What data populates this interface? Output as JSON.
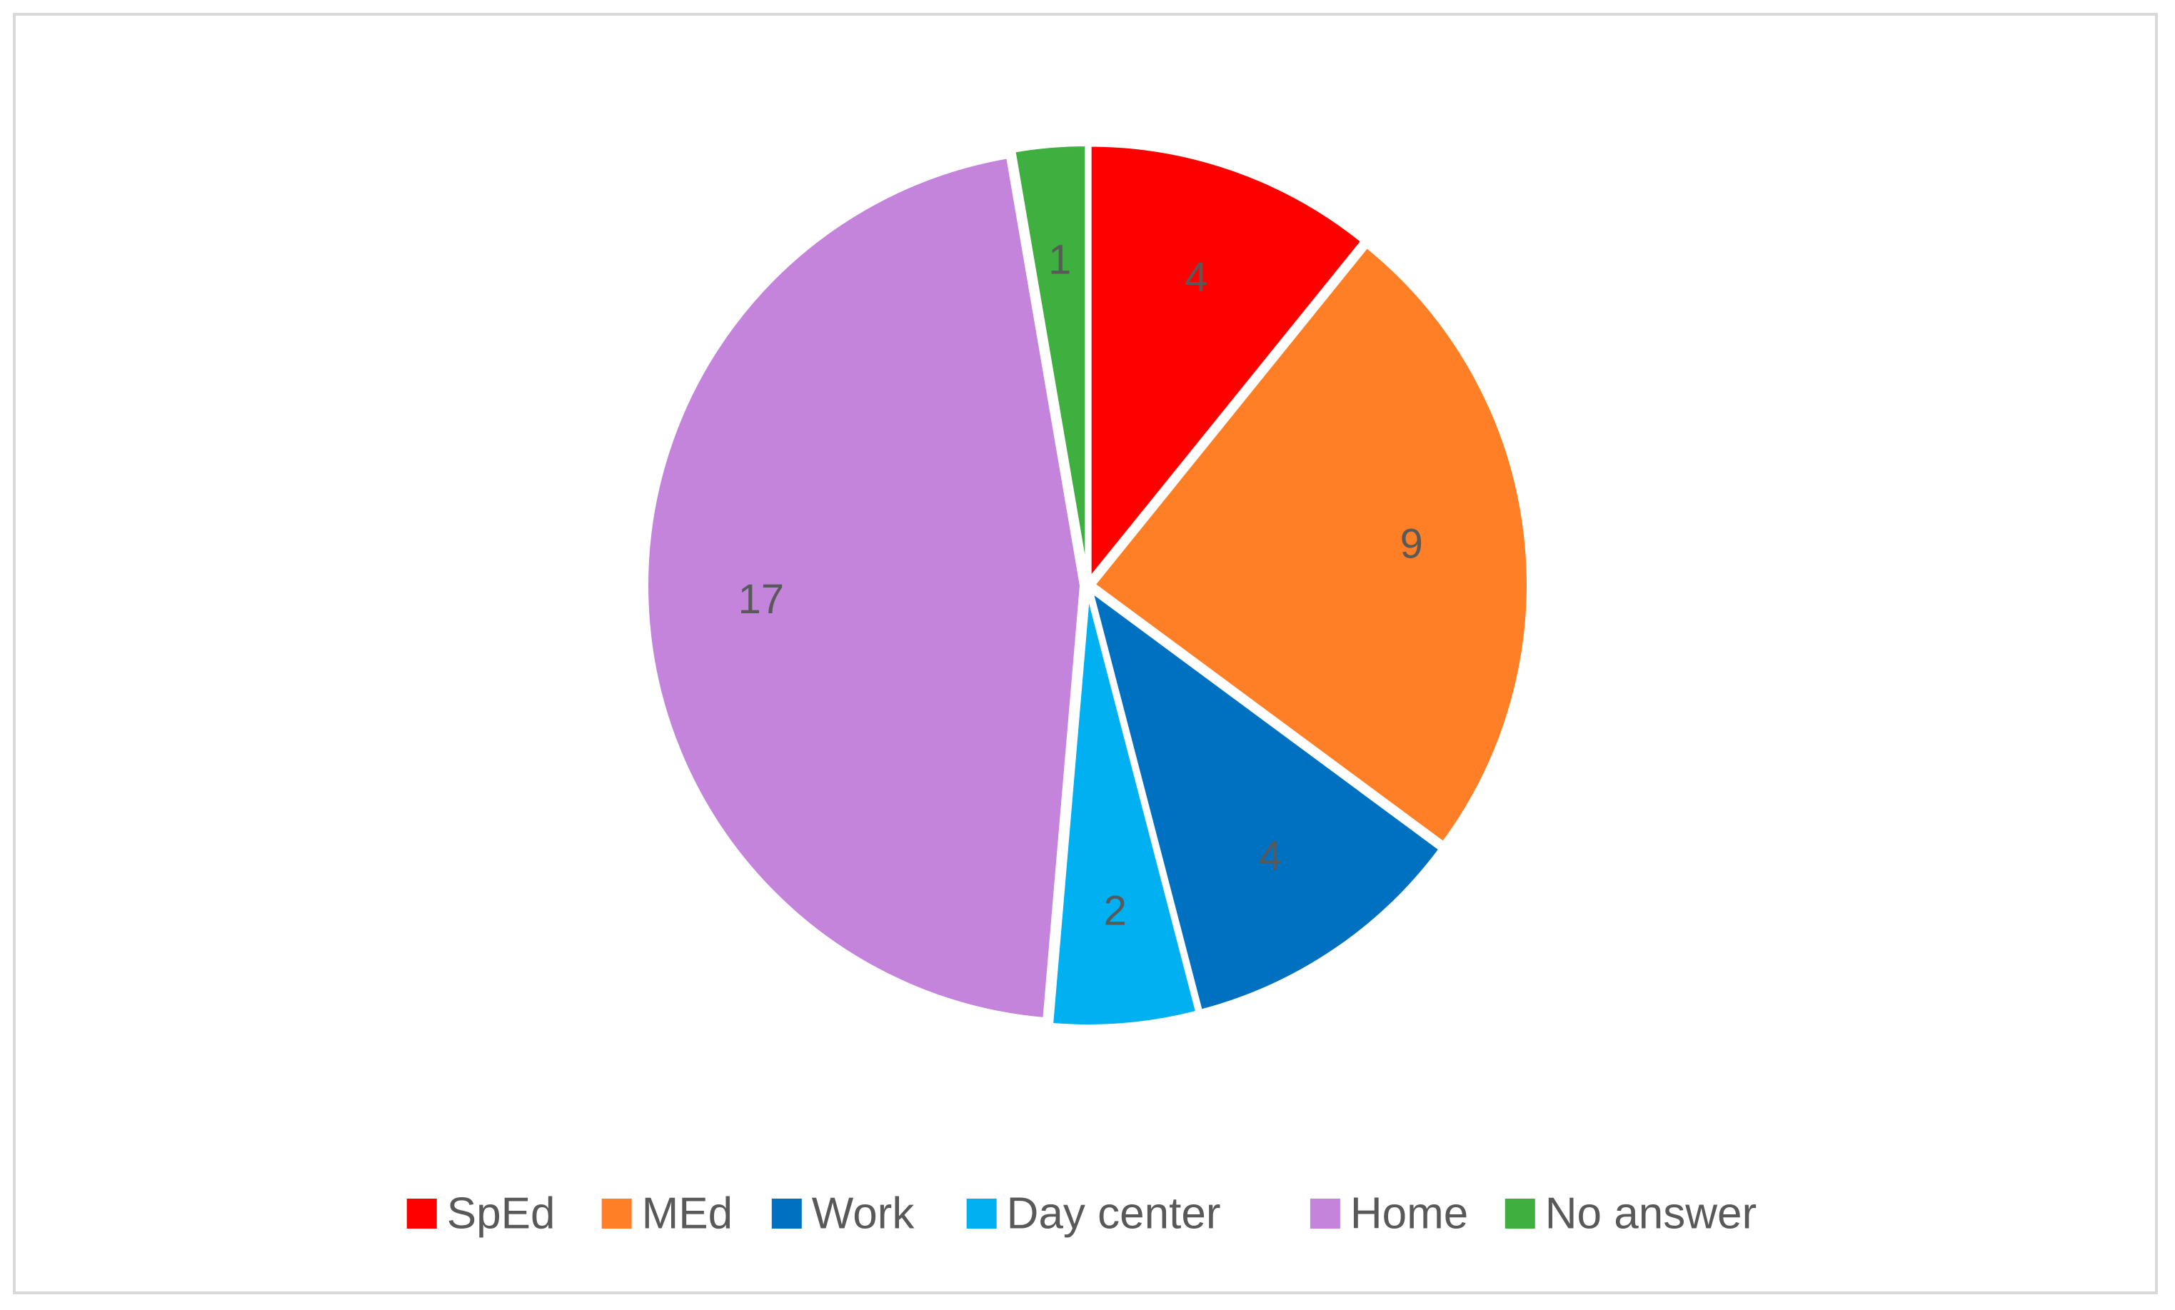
{
  "chart_data": {
    "type": "pie",
    "title": "",
    "start_angle_deg": 0,
    "direction": "clockwise",
    "slices": [
      {
        "label": "SpEd",
        "value": 4,
        "color": "#FF0000"
      },
      {
        "label": "MEd",
        "value": 9,
        "color": "#FF7F27"
      },
      {
        "label": "Work",
        "value": 4,
        "color": "#0070C0"
      },
      {
        "label": "Day center",
        "value": 2,
        "color": "#00B0F0"
      },
      {
        "label": "Home",
        "value": 17,
        "color": "#C484DC"
      },
      {
        "label": "No answer",
        "value": 1,
        "color": "#3FAF3F"
      }
    ],
    "data_labels_shown": true,
    "legend_position": "bottom",
    "background": "#FFFFFF",
    "border_color": "#D9D9D9",
    "slice_separator_color": "#FFFFFF",
    "label_color": "#595959"
  }
}
